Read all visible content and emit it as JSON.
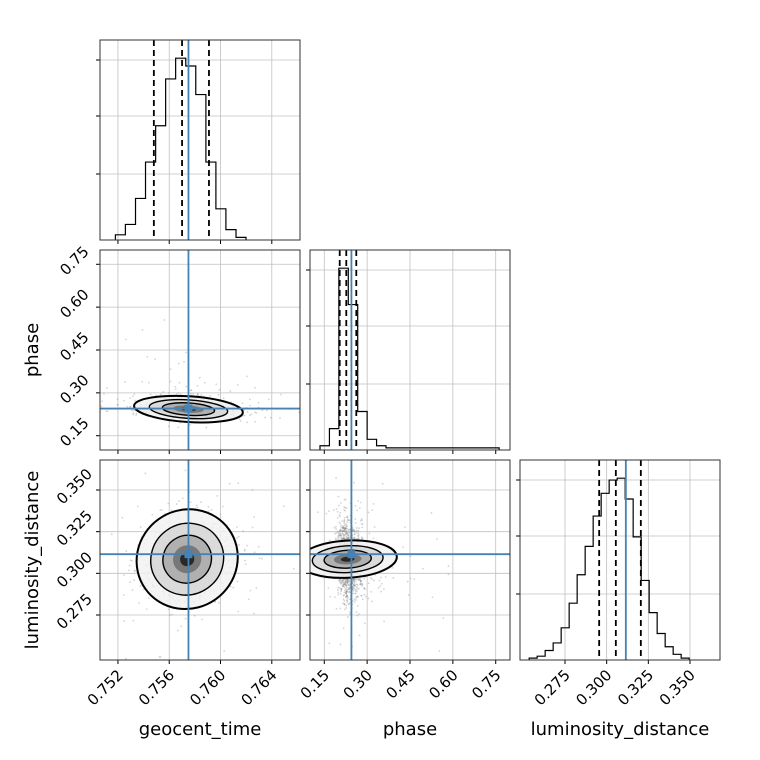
{
  "chart_data": {
    "type": "corner",
    "parameters": [
      "geocent_time",
      "phase",
      "luminosity_distance"
    ],
    "axis_labels": {
      "geocent_time": "geocent_time",
      "phase": "phase",
      "luminosity_distance": "luminosity_distance"
    },
    "ranges": {
      "geocent_time": [
        0.7506,
        0.7662
      ],
      "phase": [
        0.1,
        0.8
      ],
      "luminosity_distance": [
        0.248,
        0.368
      ]
    },
    "ticks": {
      "geocent_time": [
        "0.752",
        "0.756",
        "0.760",
        "0.764"
      ],
      "phase": [
        "0.15",
        "0.30",
        "0.45",
        "0.60",
        "0.75"
      ],
      "luminosity_distance": [
        "0.275",
        "0.300",
        "0.325",
        "0.350"
      ]
    },
    "truths": {
      "geocent_time": 0.7575,
      "phase": 0.245,
      "luminosity_distance": 0.3115
    },
    "quantiles": {
      "geocent_time": [
        0.7548,
        0.757,
        0.7591
      ],
      "phase": [
        0.204,
        0.227,
        0.262
      ],
      "luminosity_distance": [
        0.2955,
        0.3055,
        0.3205
      ]
    },
    "histograms": {
      "geocent_time": {
        "bin_edges": [
          0.7518,
          0.75258,
          0.75337,
          0.75415,
          0.75494,
          0.75572,
          0.7565,
          0.75729,
          0.75807,
          0.75886,
          0.75964,
          0.76042,
          0.76121,
          0.76199
        ],
        "counts": [
          2,
          6,
          16,
          30,
          44,
          62,
          70,
          67,
          56,
          30,
          12,
          4,
          1
        ]
      },
      "phase": {
        "bin_edges": [
          0.135,
          0.168,
          0.201,
          0.234,
          0.267,
          0.3,
          0.333,
          0.366,
          0.399,
          0.432,
          0.465,
          0.498,
          0.531,
          0.564,
          0.597,
          0.63,
          0.663,
          0.696,
          0.729,
          0.762
        ],
        "counts": [
          2,
          10,
          85,
          68,
          18,
          5,
          2,
          1,
          1,
          1,
          1,
          1,
          1,
          1,
          1,
          1,
          1,
          1,
          1
        ]
      },
      "luminosity_distance": {
        "bin_edges": [
          0.2535,
          0.2583,
          0.2631,
          0.2679,
          0.2727,
          0.2775,
          0.2823,
          0.2871,
          0.2919,
          0.2967,
          0.3015,
          0.3063,
          0.3111,
          0.3159,
          0.3207,
          0.3255,
          0.3303,
          0.3351,
          0.3399,
          0.3447,
          0.3495
        ],
        "counts": [
          1,
          2,
          5,
          9,
          17,
          30,
          45,
          60,
          76,
          88,
          95,
          96,
          85,
          65,
          42,
          25,
          14,
          7,
          3,
          1
        ]
      }
    },
    "pairs": [
      {
        "x": "geocent_time",
        "y": "phase",
        "center": [
          0.7575,
          0.243
        ],
        "sigma": [
          0.0017,
          0.018
        ],
        "rho": -0.25
      },
      {
        "x": "geocent_time",
        "y": "luminosity_distance",
        "center": [
          0.7574,
          0.3085
        ],
        "sigma": [
          0.0016,
          0.0118
        ],
        "rho": 0.12
      },
      {
        "x": "phase",
        "y": "luminosity_distance",
        "center": [
          0.232,
          0.3085
        ],
        "sigma": [
          0.026,
          0.0118
        ],
        "rho": -0.12
      }
    ],
    "colors": {
      "truth": "#4682b4",
      "contour": "#000000",
      "histogram": "#000000",
      "points": "#888888",
      "grid": "#c0c0c0"
    },
    "grid": true
  }
}
